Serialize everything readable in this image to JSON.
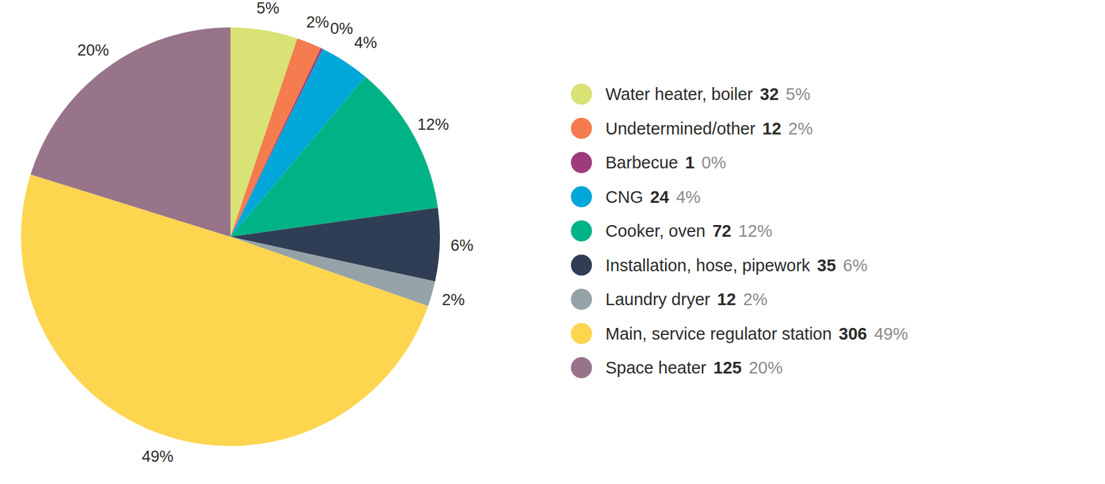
{
  "chart_data": {
    "type": "pie",
    "categories": [
      "Water heater, boiler",
      "Undetermined/other",
      "Barbecue",
      "CNG",
      "Cooker, oven",
      "Installation, hose, pipework",
      "Laundry dryer",
      "Main, service regulator station",
      "Space heater"
    ],
    "values": [
      32,
      12,
      1,
      24,
      72,
      35,
      12,
      306,
      125
    ],
    "percentages": [
      5,
      2,
      0,
      4,
      12,
      6,
      2,
      49,
      20
    ],
    "percentage_labels": [
      "5%",
      "2%",
      "0%",
      "4%",
      "12%",
      "6%",
      "2%",
      "49%",
      "20%"
    ],
    "colors": [
      "#d8e275",
      "#f47c4e",
      "#9c3c7c",
      "#00a7d8",
      "#00b386",
      "#2f3e55",
      "#95a2a8",
      "#fdd54f",
      "#98748b"
    ],
    "data_labels": true,
    "legend": "right"
  }
}
